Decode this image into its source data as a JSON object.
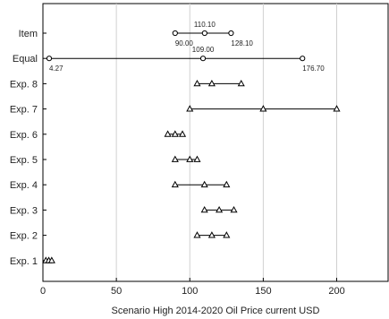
{
  "chart_data": {
    "type": "scatter",
    "subtype": "range-markers",
    "xlabel": "Scenario High 2014-2020 Oil Price current USD",
    "xlim": [
      0,
      235
    ],
    "xticks": [
      0,
      50,
      100,
      150,
      200
    ],
    "grid": "vertical",
    "rows": [
      {
        "label": "Item",
        "marker": "circle",
        "values": [
          90.0,
          110.1,
          128.1
        ],
        "value_labels": [
          "90.00",
          "110.10",
          "128.10"
        ]
      },
      {
        "label": "Equal",
        "marker": "circle",
        "values": [
          4.27,
          109.0,
          176.7
        ],
        "value_labels": [
          "4.27",
          "109.00",
          "176.70"
        ]
      },
      {
        "label": "Exp. 8",
        "marker": "triangle",
        "values": [
          105,
          115,
          135
        ]
      },
      {
        "label": "Exp. 7",
        "marker": "triangle",
        "values": [
          100,
          150,
          200
        ]
      },
      {
        "label": "Exp. 6",
        "marker": "triangle",
        "values": [
          85,
          90,
          95
        ]
      },
      {
        "label": "Exp. 5",
        "marker": "triangle",
        "values": [
          90,
          100,
          105
        ]
      },
      {
        "label": "Exp. 4",
        "marker": "triangle",
        "values": [
          90,
          110,
          125
        ]
      },
      {
        "label": "Exp. 3",
        "marker": "triangle",
        "values": [
          110,
          120,
          130
        ]
      },
      {
        "label": "Exp. 2",
        "marker": "triangle",
        "values": [
          105,
          115,
          125
        ]
      },
      {
        "label": "Exp. 1",
        "marker": "triangle",
        "values": [
          2,
          4,
          6
        ]
      }
    ]
  }
}
